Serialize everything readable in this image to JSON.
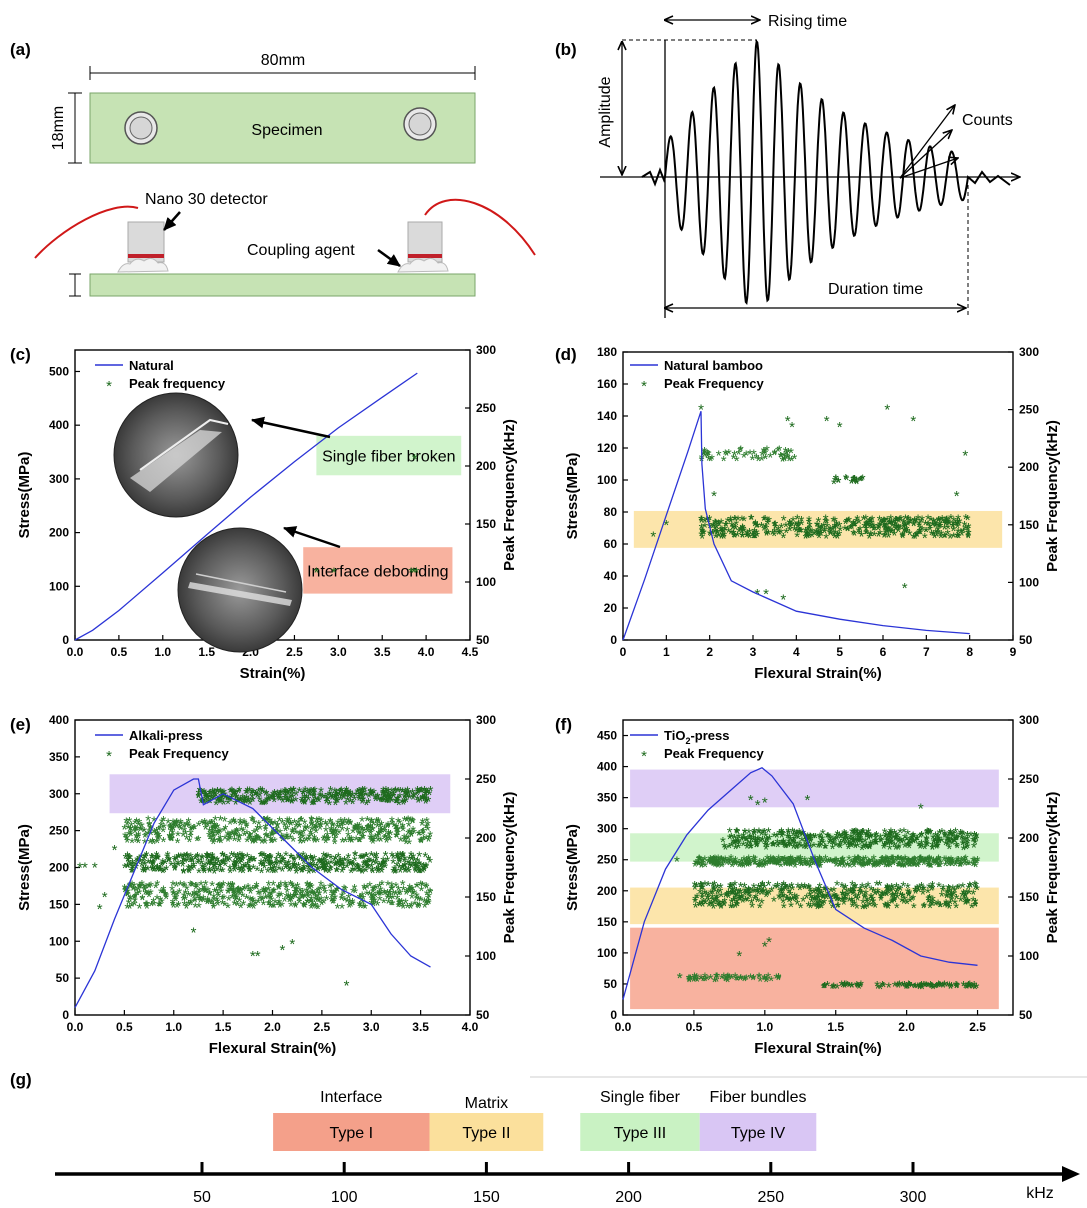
{
  "panel_a": {
    "label": "(a)",
    "width_label": "80mm",
    "height_label": "18mm",
    "specimen_label": "Specimen",
    "detector_label": "Nano 30 detector",
    "coupling_label": "Coupling agent"
  },
  "panel_b": {
    "label": "(b)",
    "rising_time": "Rising time",
    "amplitude": "Amplitude",
    "counts": "Counts",
    "duration_time": "Duration time"
  },
  "panel_c": {
    "label": "(c)"
  },
  "panel_d": {
    "label": "(d)"
  },
  "panel_e": {
    "label": "(e)"
  },
  "panel_f": {
    "label": "(f)"
  },
  "panel_g": {
    "label": "(g)",
    "unit": "kHz",
    "types": [
      {
        "category": "Interface",
        "name": "Type I",
        "from": 75,
        "to": 130,
        "color": "#f4a08a"
      },
      {
        "category": "Matrix",
        "name": "Type II",
        "from": 130,
        "to": 170,
        "color": "#fbe09c"
      },
      {
        "category": "Single fiber",
        "name": "Type III",
        "from": 183,
        "to": 225,
        "color": "#c9f2c3"
      },
      {
        "category": "Fiber bundles",
        "name": "Type IV",
        "from": 225,
        "to": 266,
        "color": "#d9c6f4"
      }
    ],
    "ticks": [
      50,
      100,
      150,
      200,
      250,
      300
    ]
  },
  "chart_data": [
    {
      "panel": "c",
      "type": "line",
      "xlabel": "Strain(%)",
      "ylabel": "Stress(MPa)",
      "y2label": "Peak Frequency(kHz)",
      "xlim": [
        0,
        4.5
      ],
      "ylim": [
        0,
        540
      ],
      "y2lim": [
        50,
        300
      ],
      "xticks": [
        0.0,
        0.5,
        1.0,
        1.5,
        2.0,
        2.5,
        3.0,
        3.5,
        4.0,
        4.5
      ],
      "yticks": [
        0,
        100,
        200,
        300,
        400,
        500
      ],
      "y2ticks": [
        50,
        100,
        150,
        200,
        250,
        300
      ],
      "series": [
        {
          "name": "Natural",
          "axis": "left",
          "x": [
            0,
            0.2,
            0.5,
            1.0,
            1.5,
            2.0,
            2.5,
            3.0,
            3.5,
            3.9
          ],
          "y": [
            0,
            18,
            55,
            125,
            196,
            266,
            332,
            395,
            452,
            497
          ]
        },
        {
          "name": "Peak frequency",
          "axis": "right",
          "marker": "scatter",
          "x": [
            2.75,
            2.95,
            3.83,
            3.86,
            3.89,
            3.87
          ],
          "y": [
            108,
            108,
            108,
            108,
            108,
            206
          ]
        }
      ],
      "bands": [
        {
          "label": "Single fiber broken",
          "x": [
            2.75,
            4.4
          ],
          "y2": [
            192,
            226
          ],
          "color": "#c9f2c3"
        },
        {
          "label": "Interface debonding",
          "x": [
            2.6,
            4.3
          ],
          "y2": [
            90,
            130
          ],
          "color": "#f7a48e"
        }
      ]
    },
    {
      "panel": "d",
      "type": "line",
      "xlabel": "Flexural Strain(%)",
      "ylabel": "Stress(MPa)",
      "y2label": "Peak Frequency(kHz)",
      "xlim": [
        0,
        9
      ],
      "ylim": [
        0,
        180
      ],
      "y2lim": [
        50,
        300
      ],
      "xticks": [
        0,
        1,
        2,
        3,
        4,
        5,
        6,
        7,
        8,
        9
      ],
      "yticks": [
        0,
        20,
        40,
        60,
        80,
        100,
        120,
        140,
        160,
        180
      ],
      "y2ticks": [
        50,
        100,
        150,
        200,
        250,
        300
      ],
      "series": [
        {
          "name": "Natural bamboo",
          "axis": "left",
          "x": [
            0,
            0.5,
            1.0,
            1.5,
            1.8,
            1.82,
            1.9,
            2.1,
            2.5,
            3.0,
            3.5,
            4.0,
            5.0,
            6.0,
            7.0,
            8.0
          ],
          "y": [
            0,
            38,
            78,
            118,
            143,
            110,
            82,
            60,
            37,
            30,
            24,
            18,
            13,
            9,
            6,
            4
          ]
        },
        {
          "name": "Peak Frequency",
          "axis": "right",
          "marker": "scatter",
          "clusters": [
            {
              "x": [
                1.8,
                8.0
              ],
              "y2": [
                138,
                155
              ],
              "density": "high"
            },
            {
              "x": [
                1.8,
                4.0
              ],
              "y2": [
                205,
                215
              ],
              "density": "medium"
            },
            {
              "x": [
                4.8,
                5.6
              ],
              "y2": [
                185,
                190
              ],
              "density": "medium"
            }
          ],
          "x": [
            0.7,
            1.0,
            1.8,
            2.1,
            3.1,
            3.3,
            3.7,
            3.8,
            3.9,
            4.7,
            5.0,
            6.1,
            6.5,
            6.7,
            7.7,
            7.9
          ],
          "y": [
            140,
            150,
            250,
            175,
            90,
            90,
            85,
            240,
            235,
            240,
            235,
            250,
            95,
            240,
            175,
            210
          ]
        }
      ],
      "bands": [
        {
          "x": [
            0.25,
            8.75
          ],
          "y2": [
            130,
            162
          ],
          "color": "#fbe09c"
        }
      ]
    },
    {
      "panel": "e",
      "type": "line",
      "xlabel": "Flexural Strain(%)",
      "ylabel": "Stress(MPa)",
      "y2label": "Peak Frequency(kHz)",
      "xlim": [
        0,
        4.0
      ],
      "ylim": [
        0,
        400
      ],
      "y2lim": [
        50,
        300
      ],
      "xticks": [
        0.0,
        0.5,
        1.0,
        1.5,
        2.0,
        2.5,
        3.0,
        3.5,
        4.0
      ],
      "yticks": [
        0,
        50,
        100,
        150,
        200,
        250,
        300,
        350,
        400
      ],
      "y2ticks": [
        50,
        100,
        150,
        200,
        250,
        300
      ],
      "series": [
        {
          "name": "Alkali-press",
          "axis": "left",
          "x": [
            0,
            0.2,
            0.4,
            0.6,
            0.8,
            1.0,
            1.2,
            1.25,
            1.3,
            1.5,
            1.8,
            2.1,
            2.4,
            2.7,
            3.0,
            3.2,
            3.4,
            3.6
          ],
          "y": [
            10,
            60,
            130,
            195,
            260,
            305,
            320,
            320,
            285,
            300,
            280,
            240,
            200,
            170,
            150,
            110,
            80,
            65
          ]
        },
        {
          "name": "Peak Frequency",
          "axis": "right",
          "marker": "scatter",
          "clusters": [
            {
              "x": [
                1.25,
                3.6
              ],
              "y2": [
                228,
                240
              ],
              "density": "high"
            },
            {
              "x": [
                0.5,
                3.6
              ],
              "y2": [
                195,
                215
              ],
              "density": "high"
            },
            {
              "x": [
                0.5,
                3.6
              ],
              "y2": [
                170,
                185
              ],
              "density": "high"
            },
            {
              "x": [
                0.5,
                3.6
              ],
              "y2": [
                140,
                160
              ],
              "density": "high"
            }
          ],
          "x": [
            0.05,
            0.1,
            0.2,
            0.25,
            0.3,
            0.4,
            0.7,
            1.2,
            1.8,
            1.85,
            2.1,
            2.2,
            2.75
          ],
          "y": [
            175,
            175,
            175,
            140,
            150,
            190,
            205,
            120,
            100,
            100,
            105,
            110,
            75
          ]
        }
      ],
      "bands": [
        {
          "x": [
            0.35,
            3.8
          ],
          "y2": [
            221,
            254
          ],
          "color": "#d9c6f4"
        }
      ]
    },
    {
      "panel": "f",
      "type": "line",
      "xlabel": "Flexural Strain(%)",
      "ylabel": "Stress(MPa)",
      "y2label": "Peak Frequency(kHz)",
      "legend_raw": "TiO2-press",
      "xlim": [
        0,
        2.75
      ],
      "ylim": [
        0,
        475
      ],
      "y2lim": [
        50,
        300
      ],
      "xticks": [
        0.0,
        0.5,
        1.0,
        1.5,
        2.0,
        2.5
      ],
      "yticks": [
        0,
        50,
        100,
        150,
        200,
        250,
        300,
        350,
        400,
        450
      ],
      "y2ticks": [
        50,
        100,
        150,
        200,
        250,
        300
      ],
      "series": [
        {
          "name": "TiO2-press",
          "axis": "left",
          "x": [
            0,
            0.15,
            0.3,
            0.45,
            0.6,
            0.75,
            0.9,
            0.98,
            1.05,
            1.2,
            1.35,
            1.5,
            1.7,
            1.9,
            2.1,
            2.3,
            2.5
          ],
          "y": [
            25,
            150,
            235,
            290,
            330,
            360,
            390,
            398,
            385,
            340,
            250,
            170,
            140,
            120,
            95,
            85,
            80
          ]
        },
        {
          "name": "Peak Frequency",
          "axis": "right",
          "marker": "scatter",
          "clusters": [
            {
              "x": [
                0.7,
                2.5
              ],
              "y2": [
                190,
                205
              ],
              "density": "high"
            },
            {
              "x": [
                0.5,
                2.5
              ],
              "y2": [
                175,
                182
              ],
              "density": "high"
            },
            {
              "x": [
                0.5,
                2.5
              ],
              "y2": [
                140,
                160
              ],
              "density": "high"
            },
            {
              "x": [
                0.4,
                1.1
              ],
              "y2": [
                78,
                82
              ],
              "density": "medium"
            },
            {
              "x": [
                1.4,
                2.5
              ],
              "y2": [
                72,
                75
              ],
              "density": "medium"
            }
          ],
          "x": [
            0.38,
            0.9,
            0.95,
            1.0,
            1.3,
            2.1,
            0.55,
            0.82,
            1.0,
            1.03
          ],
          "y": [
            180,
            232,
            228,
            230,
            232,
            225,
            80,
            100,
            108,
            112
          ]
        }
      ],
      "bands": [
        {
          "x": [
            0.05,
            2.65
          ],
          "y2": [
            226,
            258
          ],
          "color": "#d9c6f4"
        },
        {
          "x": [
            0.05,
            2.65
          ],
          "y2": [
            180,
            204
          ],
          "color": "#c9f2c3"
        },
        {
          "x": [
            0.05,
            2.65
          ],
          "y2": [
            127,
            158
          ],
          "color": "#fbe09c"
        },
        {
          "x": [
            0.05,
            2.65
          ],
          "y2": [
            55,
            124
          ],
          "color": "#f7a48e"
        }
      ]
    }
  ]
}
